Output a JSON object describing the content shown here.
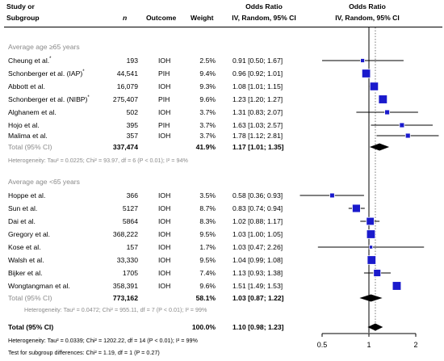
{
  "header": {
    "study1": "Study or",
    "study2": "Subgroup",
    "n": "n",
    "outcome": "Outcome",
    "weight": "Weight",
    "or_title": "Odds Ratio",
    "or_method": "IV, Random, 95% CI",
    "plot_title": "Odds Ratio",
    "plot_method": "IV, Random, 95% CI"
  },
  "groups": [
    {
      "label": "Average age ≥65 years",
      "total_label": "Total (95% CI)",
      "total_n": "337,474",
      "total_weight": "41.9%",
      "total_ci": "1.17 [1.01; 1.35]",
      "heterogeneity": "Heterogeneity: Tau² = 0.0225; Chi² = 93.97, df = 6 (P < 0.01); I² = 94%",
      "rows": [
        {
          "study": "Cheung et al.",
          "star": "*",
          "n": "193",
          "outcome": "IOH",
          "weight": "2.5%",
          "ci": "0.91 [0.50; 1.67]"
        },
        {
          "study": "Schonberger et al. (IAP)",
          "star": "*",
          "n": "44,541",
          "outcome": "PIH",
          "weight": "9.4%",
          "ci": "0.96 [0.92; 1.01]"
        },
        {
          "study": "Abbott et al.",
          "star": "",
          "n": "16,079",
          "outcome": "IOH",
          "weight": "9.3%",
          "ci": "1.08 [1.01; 1.15]"
        },
        {
          "study": "Schonberger et al. (NIBP)",
          "star": "*",
          "n": "275,407",
          "outcome": "PIH",
          "weight": "9.6%",
          "ci": "1.23 [1.20; 1.27]"
        },
        {
          "study": "Alghanem et al.",
          "star": "",
          "n": "502",
          "outcome": "IOH",
          "weight": "3.7%",
          "ci": "1.31 [0.83; 2.07]"
        },
        {
          "study": "Hojo et al.",
          "star": "",
          "n": "395",
          "outcome": "PIH",
          "weight": "3.7%",
          "ci": "1.63 [1.03; 2.57]"
        },
        {
          "study": "Malima et al.",
          "star": "",
          "n": "357",
          "outcome": "IOH",
          "weight": "3.7%",
          "ci": "1.78 [1.12; 2.81]"
        }
      ]
    },
    {
      "label": "Average age <65 years",
      "total_label": "Total (95% CI)",
      "total_n": "773,162",
      "total_weight": "58.1%",
      "total_ci": "1.03 [0.87; 1.22]",
      "heterogeneity": "Heterogeneity: Tau² = 0.0472; Chi² = 955.11, df = 7 (P < 0.01); I² = 99%",
      "rows": [
        {
          "study": "Hoppe et al.",
          "star": "",
          "n": "366",
          "outcome": "IOH",
          "weight": "3.5%",
          "ci": "0.58 [0.36; 0.93]"
        },
        {
          "study": "Sun et al.",
          "star": "",
          "n": "5127",
          "outcome": "IOH",
          "weight": "8.7%",
          "ci": "0.83 [0.74; 0.94]"
        },
        {
          "study": "Dai et al.",
          "star": "",
          "n": "5864",
          "outcome": "IOH",
          "weight": "8.3%",
          "ci": "1.02 [0.88; 1.17]"
        },
        {
          "study": "Gregory et al.",
          "star": "",
          "n": "368,222",
          "outcome": "IOH",
          "weight": "9.5%",
          "ci": "1.03 [1.00; 1.05]"
        },
        {
          "study": "Kose et al.",
          "star": "",
          "n": "157",
          "outcome": "IOH",
          "weight": "1.7%",
          "ci": "1.03 [0.47; 2.26]"
        },
        {
          "study": "Walsh et al.",
          "star": "",
          "n": "33,330",
          "outcome": "IOH",
          "weight": "9.5%",
          "ci": "1.04 [0.99; 1.08]"
        },
        {
          "study": "Bijker et al.",
          "star": "",
          "n": "1705",
          "outcome": "IOH",
          "weight": "7.4%",
          "ci": "1.13 [0.93; 1.38]"
        },
        {
          "study": "Wongtangman et al.",
          "star": "",
          "n": "358,391",
          "outcome": "IOH",
          "weight": "9.6%",
          "ci": "1.51 [1.49; 1.53]"
        }
      ]
    }
  ],
  "overall": {
    "label": "Total (95% CI)",
    "weight": "100.0%",
    "ci": "1.10 [0.98; 1.23]",
    "heterogeneity": "Heterogeneity: Tau² = 0.0339; Chi² = 1202.22, df = 14 (P < 0.01); I² = 99%",
    "subgroup_test": "Test for subgroup differences: Chi² = 1.19, df = 1 (P = 0.27)"
  },
  "chart_data": {
    "type": "forest",
    "scale": "log",
    "xlim": [
      0.5,
      2
    ],
    "x_ticks": [
      "0.5",
      "1",
      "2"
    ],
    "reference_line": 1,
    "pooled_line": 1.1,
    "colors": {
      "box": "#1a1acc",
      "diamond": "#000000",
      "subgroup_label": "#8a8a8a"
    },
    "studies": [
      {
        "name": "Cheung et al.",
        "or": 0.91,
        "lo": 0.5,
        "hi": 1.67,
        "weight": 2.5
      },
      {
        "name": "Schonberger et al. (IAP)",
        "or": 0.96,
        "lo": 0.92,
        "hi": 1.01,
        "weight": 9.4
      },
      {
        "name": "Abbott et al.",
        "or": 1.08,
        "lo": 1.01,
        "hi": 1.15,
        "weight": 9.3
      },
      {
        "name": "Schonberger et al. (NIBP)",
        "or": 1.23,
        "lo": 1.2,
        "hi": 1.27,
        "weight": 9.6
      },
      {
        "name": "Alghanem et al.",
        "or": 1.31,
        "lo": 0.83,
        "hi": 2.07,
        "weight": 3.7
      },
      {
        "name": "Hojo et al.",
        "or": 1.63,
        "lo": 1.03,
        "hi": 2.57,
        "weight": 3.7
      },
      {
        "name": "Malima et al.",
        "or": 1.78,
        "lo": 1.12,
        "hi": 2.81,
        "weight": 3.7
      },
      {
        "name": "Hoppe et al.",
        "or": 0.58,
        "lo": 0.36,
        "hi": 0.93,
        "weight": 3.5
      },
      {
        "name": "Sun et al.",
        "or": 0.83,
        "lo": 0.74,
        "hi": 0.94,
        "weight": 8.7
      },
      {
        "name": "Dai et al.",
        "or": 1.02,
        "lo": 0.88,
        "hi": 1.17,
        "weight": 8.3
      },
      {
        "name": "Gregory et al.",
        "or": 1.03,
        "lo": 1.0,
        "hi": 1.05,
        "weight": 9.5
      },
      {
        "name": "Kose et al.",
        "or": 1.03,
        "lo": 0.47,
        "hi": 2.26,
        "weight": 1.7
      },
      {
        "name": "Walsh et al.",
        "or": 1.04,
        "lo": 0.99,
        "hi": 1.08,
        "weight": 9.5
      },
      {
        "name": "Bijker et al.",
        "or": 1.13,
        "lo": 0.93,
        "hi": 1.38,
        "weight": 7.4
      },
      {
        "name": "Wongtangman et al.",
        "or": 1.51,
        "lo": 1.49,
        "hi": 1.53,
        "weight": 9.6
      }
    ],
    "summaries": [
      {
        "name": "Average age ≥65 years",
        "or": 1.17,
        "lo": 1.01,
        "hi": 1.35
      },
      {
        "name": "Average age <65 years",
        "or": 1.03,
        "lo": 0.87,
        "hi": 1.22
      },
      {
        "name": "Overall",
        "or": 1.1,
        "lo": 0.98,
        "hi": 1.23
      }
    ]
  }
}
